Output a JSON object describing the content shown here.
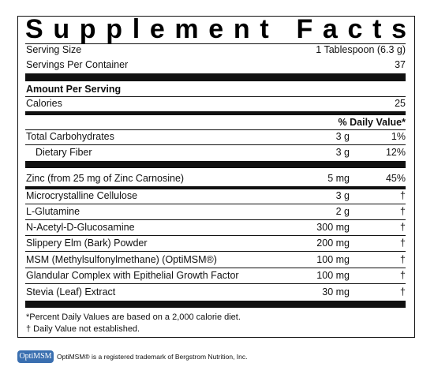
{
  "title": "Supplement Facts",
  "serving_size": {
    "label": "Serving Size",
    "value": "1 Tablespoon (6.3 g)"
  },
  "servings_per_container": {
    "label": "Servings Per Container",
    "value": "37"
  },
  "amount_per_serving": "Amount Per Serving",
  "calories": {
    "label": "Calories",
    "value": "25"
  },
  "daily_value_header": "% Daily Value*",
  "nutrients": [
    {
      "name": "Total Carbohydrates",
      "amount": "3 g",
      "dv": "1%"
    },
    {
      "name": "Dietary Fiber",
      "amount": "3 g",
      "dv": "12%"
    },
    {
      "name": "Zinc (from 25 mg of Zinc Carnosine)",
      "amount": "5 mg",
      "dv": "45%"
    },
    {
      "name": "Microcrystalline Cellulose",
      "amount": "3 g",
      "dv": "†"
    },
    {
      "name": "L-Glutamine",
      "amount": "2 g",
      "dv": "†"
    },
    {
      "name": "N-Acetyl-D-Glucosamine",
      "amount": "300 mg",
      "dv": "†"
    },
    {
      "name": "Slippery Elm (Bark) Powder",
      "amount": "200 mg",
      "dv": "†"
    },
    {
      "name": "MSM (Methylsulfonylmethane) (OptiMSM®)",
      "amount": "100 mg",
      "dv": "†"
    },
    {
      "name": "Glandular Complex with Epithelial Growth Factor",
      "amount": "100 mg",
      "dv": "†"
    },
    {
      "name": "Stevia (Leaf) Extract",
      "amount": "30 mg",
      "dv": "†"
    }
  ],
  "footnotes": [
    "*Percent Daily Values are based on a 2,000 calorie diet.",
    "† Daily Value not established."
  ],
  "trademark": {
    "logo": "OptiMSM",
    "text": "OptiMSM® is a registered trademark of Bergstrom Nutrition, Inc."
  }
}
